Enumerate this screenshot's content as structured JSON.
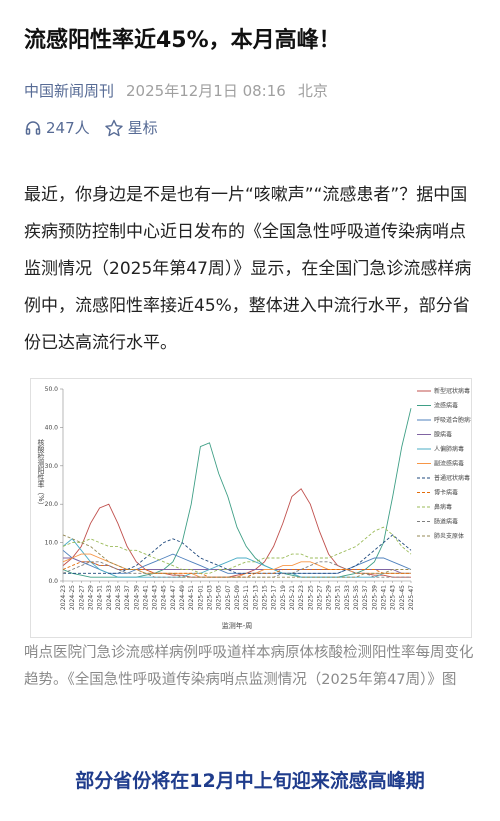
{
  "header": {
    "title": "流感阳性率近45%，本月高峰！"
  },
  "meta": {
    "source": "中国新闻周刊",
    "time": "2025年12月1日 08:16",
    "location": "北京"
  },
  "stats": {
    "listeners": "247人",
    "star": "星标"
  },
  "body": {
    "paragraph": "最近，你身边是不是也有一片“咳嗽声”“流感患者”？据中国疾病预防控制中心近日发布的《全国急性呼吸道传染病哨点监测情况（2025年第47周）》显示，在全国门急诊流感样病例中，流感阳性率接近45%，整体进入中流行水平，部分省份已达高流行水平。"
  },
  "figure": {
    "chart_data": {
      "type": "line",
      "y_label": "核酸检测阳性率（%）",
      "x_label": "监测年-周",
      "ylim": [
        0,
        50
      ],
      "yticks": [
        {
          "value": 0,
          "label": "0.0"
        },
        {
          "value": 10,
          "label": "10.0"
        },
        {
          "value": 20,
          "label": "20.0"
        },
        {
          "value": 30,
          "label": "30.0"
        },
        {
          "value": 40,
          "label": "40.0"
        },
        {
          "value": 50,
          "label": "50.0"
        }
      ],
      "categories": [
        "2024-23",
        "2024-25",
        "2024-27",
        "2024-29",
        "2024-31",
        "2024-33",
        "2024-35",
        "2024-37",
        "2024-39",
        "2024-41",
        "2024-43",
        "2024-45",
        "2024-47",
        "2024-49",
        "2024-51",
        "2025-01",
        "2025-03",
        "2025-05",
        "2025-07",
        "2025-09",
        "2025-11",
        "2025-13",
        "2025-15",
        "2025-17",
        "2025-19",
        "2025-21",
        "2025-23",
        "2025-25",
        "2025-27",
        "2025-29",
        "2025-31",
        "2025-33",
        "2025-35",
        "2025-37",
        "2025-39",
        "2025-41",
        "2025-43",
        "2025-45",
        "2025-47"
      ],
      "series": [
        {
          "name": "新型冠状病毒",
          "color": "#c0504d",
          "dashed": false,
          "values": [
            4,
            6,
            9,
            15,
            19,
            20,
            15,
            9,
            5,
            3,
            2,
            2,
            1.5,
            1.5,
            1,
            1,
            1,
            1,
            1,
            1.5,
            2,
            3,
            5,
            9,
            15,
            22,
            24,
            20,
            13,
            7,
            4,
            3,
            2,
            2,
            1.5,
            1.5,
            1,
            1,
            1
          ]
        },
        {
          "name": "流感病毒",
          "color": "#3f9f86",
          "dashed": false,
          "values": [
            3,
            2,
            1.5,
            1,
            1,
            1,
            1,
            1,
            1,
            1.5,
            2,
            3,
            5,
            10,
            20,
            35,
            36,
            28,
            22,
            14,
            9,
            6,
            4,
            3,
            2,
            1.5,
            1,
            1,
            1,
            1,
            1,
            1.5,
            2,
            3,
            5,
            10,
            22,
            35,
            45
          ]
        },
        {
          "name": "呼吸道合胞病毒",
          "color": "#4f81bd",
          "dashed": false,
          "values": [
            8,
            6,
            5,
            4,
            3,
            2,
            2,
            2,
            3,
            4,
            5,
            6,
            7,
            6,
            5,
            4,
            3,
            3,
            2,
            2,
            2,
            2,
            2,
            2,
            2,
            2,
            2,
            2,
            2,
            2,
            2,
            3,
            4,
            5,
            6,
            6,
            5,
            4,
            3
          ]
        },
        {
          "name": "腺病毒",
          "color": "#8064a2",
          "dashed": false,
          "values": [
            6,
            6,
            5,
            5,
            4,
            4,
            3,
            3,
            3,
            3,
            3,
            3,
            3,
            3,
            3,
            3,
            3,
            3,
            3,
            3,
            3,
            3,
            3,
            3,
            3,
            3,
            3,
            3,
            3,
            3,
            3,
            3,
            3,
            3,
            3,
            3,
            3,
            2,
            2
          ]
        },
        {
          "name": "人偏肺病毒",
          "color": "#4bacc6",
          "dashed": false,
          "values": [
            9,
            11,
            8,
            5,
            3,
            2,
            1,
            1,
            1,
            1,
            1,
            1,
            1,
            1,
            2,
            2,
            3,
            4,
            5,
            6,
            6,
            5,
            4,
            3,
            2,
            2,
            1,
            1,
            1,
            1,
            1,
            1,
            1,
            1,
            1,
            2,
            2,
            2,
            2
          ]
        },
        {
          "name": "副流感病毒",
          "color": "#f79646",
          "dashed": false,
          "values": [
            5,
            6,
            7,
            7,
            6,
            5,
            4,
            3,
            3,
            2,
            2,
            2,
            2,
            2,
            2,
            1,
            1,
            1,
            1,
            1,
            2,
            2,
            3,
            3,
            4,
            4,
            5,
            5,
            4,
            3,
            3,
            3,
            2,
            2,
            2,
            2,
            2,
            2,
            2
          ]
        },
        {
          "name": "普通冠状病毒",
          "color": "#1f497d",
          "dashed": true,
          "values": [
            2,
            2,
            2,
            2,
            2,
            2,
            2,
            3,
            4,
            6,
            8,
            10,
            11,
            10,
            8,
            6,
            5,
            4,
            3,
            2,
            2,
            2,
            2,
            2,
            2,
            2,
            2,
            2,
            2,
            2,
            2,
            3,
            4,
            6,
            8,
            10,
            12,
            10,
            8
          ]
        },
        {
          "name": "博卡病毒",
          "color": "#e46c0a",
          "dashed": true,
          "values": [
            3,
            4,
            5,
            5,
            4,
            4,
            3,
            3,
            3,
            3,
            2,
            2,
            2,
            2,
            2,
            2,
            1,
            1,
            1,
            1,
            1,
            2,
            2,
            2,
            3,
            3,
            3,
            3,
            3,
            3,
            3,
            3,
            3,
            3,
            3,
            2,
            2,
            2,
            2
          ]
        },
        {
          "name": "鼻病毒",
          "color": "#9bbb59",
          "dashed": true,
          "values": [
            9,
            10,
            10,
            11,
            10,
            9,
            9,
            8,
            8,
            7,
            6,
            5,
            4,
            3,
            3,
            2,
            2,
            3,
            3,
            4,
            5,
            5,
            6,
            6,
            6,
            7,
            7,
            6,
            6,
            6,
            7,
            8,
            9,
            11,
            13,
            14,
            12,
            9,
            7
          ]
        },
        {
          "name": "肠道病毒",
          "color": "#7f7f7f",
          "dashed": true,
          "values": [
            2,
            3,
            4,
            5,
            5,
            4,
            3,
            2,
            2,
            2,
            1,
            1,
            1,
            1,
            1,
            1,
            1,
            1,
            1,
            1,
            1,
            1,
            1,
            1,
            2,
            2,
            3,
            4,
            5,
            5,
            4,
            3,
            2,
            2,
            1,
            1,
            1,
            1,
            1
          ]
        },
        {
          "name": "肺炎支原体",
          "color": "#948a54",
          "dashed": true,
          "values": [
            12,
            11,
            10,
            9,
            7,
            5,
            4,
            3,
            3,
            2,
            2,
            2,
            2,
            1,
            1,
            1,
            1,
            1,
            1,
            1,
            1,
            1,
            1,
            1,
            1,
            1,
            1,
            1,
            1,
            1,
            1,
            1,
            1,
            2,
            2,
            2,
            3,
            3,
            3
          ]
        }
      ]
    },
    "caption": "哨点医院门急诊流感样病例呼吸道样本病原体核酸检测阳性率每周变化趋势。《全国急性呼吸道传染病哨点监测情况（2025年第47周）》图"
  },
  "section_heading": "部分省份将在12月中上旬迎来流感高峰期"
}
